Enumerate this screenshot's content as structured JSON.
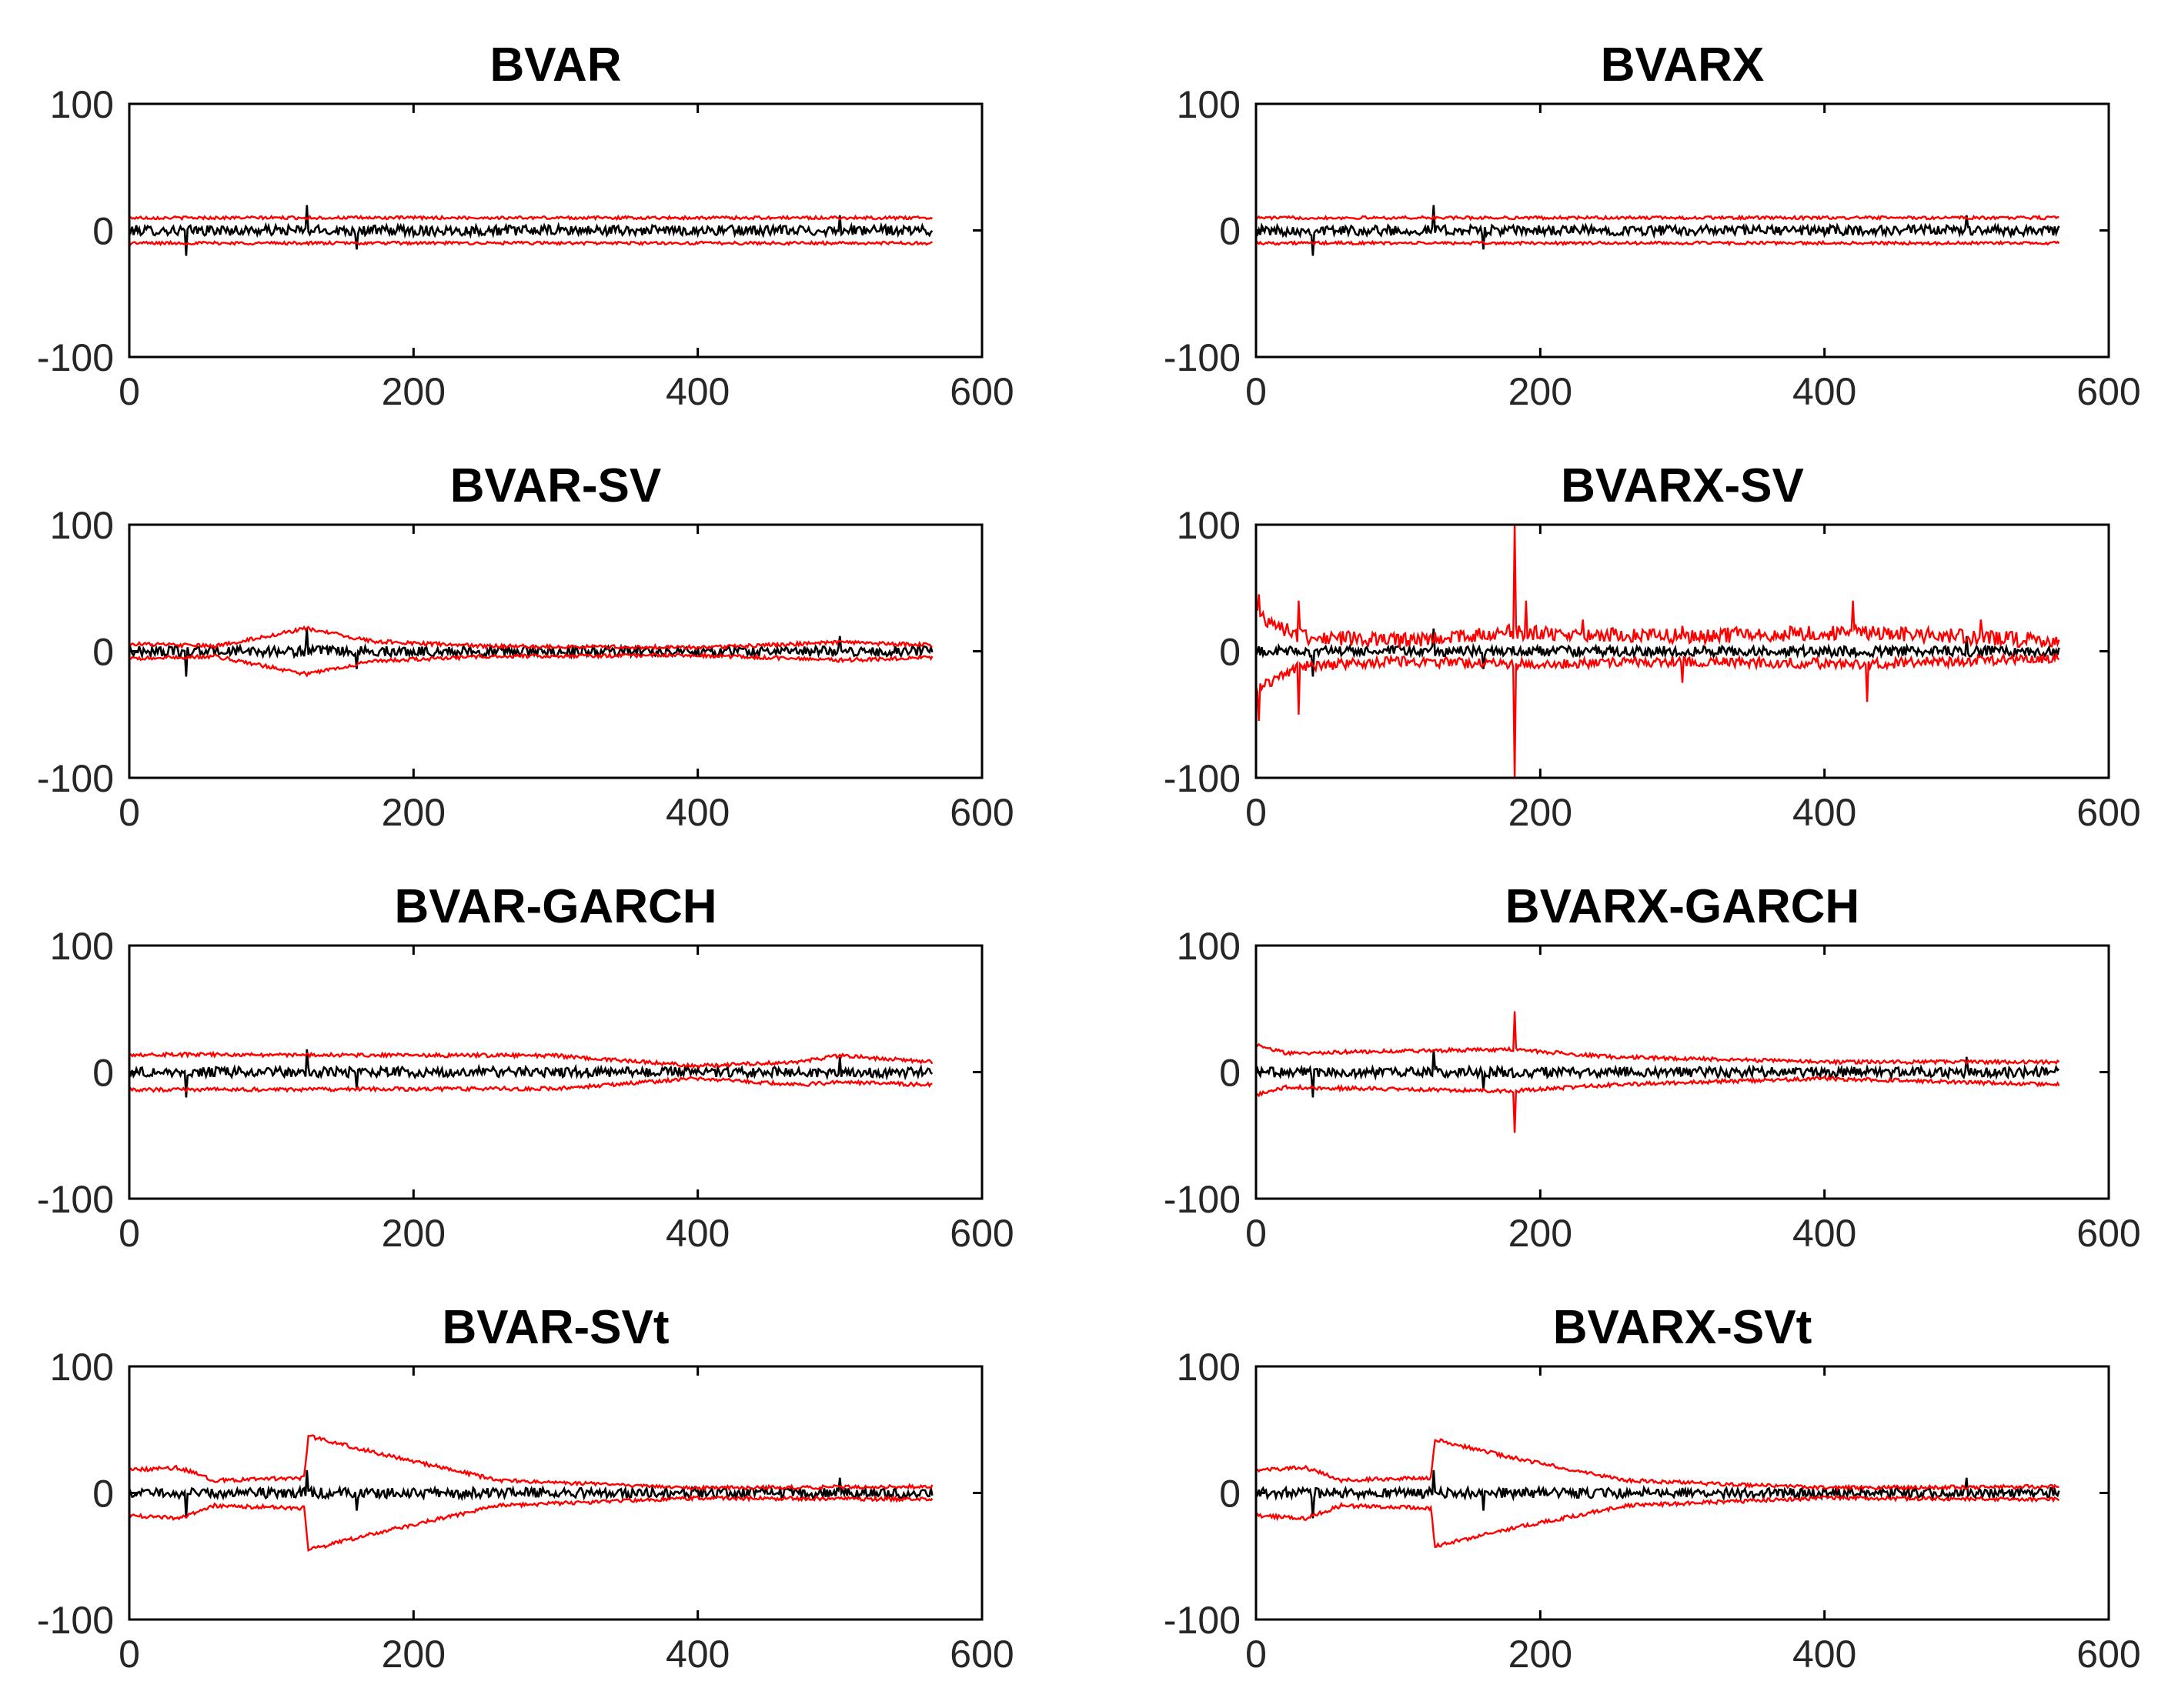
{
  "figure": {
    "colors": {
      "actual": "#000000",
      "bands": "#ff0000",
      "axes": "#000000",
      "tick_text": "#262626"
    }
  },
  "chart_data": [
    {
      "type": "line",
      "title": "BVAR",
      "xlim": [
        0,
        600
      ],
      "ylim": [
        -100,
        100
      ],
      "xticks": [
        "0",
        "200",
        "400",
        "600"
      ],
      "yticks": [
        "100",
        "0",
        "-100"
      ],
      "n_obs": 565,
      "series": [
        {
          "role": "actual",
          "color": "#000000",
          "mean": 0,
          "noise": 4,
          "spikes": [
            [
              40,
              -20
            ],
            [
              125,
              20
            ],
            [
              160,
              -15
            ],
            [
              500,
              12
            ]
          ]
        },
        {
          "role": "upper-band",
          "color": "#ff0000",
          "profile": [
            [
              0,
              10
            ],
            [
              565,
              10
            ]
          ],
          "noise": 1.2
        },
        {
          "role": "lower-band",
          "color": "#ff0000",
          "profile": [
            [
              0,
              -10
            ],
            [
              565,
              -10
            ]
          ],
          "noise": 1.2
        }
      ]
    },
    {
      "type": "line",
      "title": "BVARX",
      "xlim": [
        0,
        600
      ],
      "ylim": [
        -100,
        100
      ],
      "xticks": [
        "0",
        "200",
        "400",
        "600"
      ],
      "yticks": [
        "100",
        "0",
        "-100"
      ],
      "n_obs": 565,
      "series": [
        {
          "role": "actual",
          "color": "#000000",
          "mean": 0,
          "noise": 4,
          "spikes": [
            [
              40,
              -20
            ],
            [
              125,
              20
            ],
            [
              160,
              -15
            ],
            [
              500,
              12
            ]
          ]
        },
        {
          "role": "upper-band",
          "color": "#ff0000",
          "profile": [
            [
              0,
              10
            ],
            [
              565,
              10
            ]
          ],
          "noise": 1.2
        },
        {
          "role": "lower-band",
          "color": "#ff0000",
          "profile": [
            [
              0,
              -10
            ],
            [
              565,
              -10
            ]
          ],
          "noise": 1.2
        }
      ]
    },
    {
      "type": "line",
      "title": "BVAR-SV",
      "xlim": [
        0,
        600
      ],
      "ylim": [
        -100,
        100
      ],
      "xticks": [
        "0",
        "200",
        "400",
        "600"
      ],
      "yticks": [
        "100",
        "0",
        "-100"
      ],
      "n_obs": 565,
      "series": [
        {
          "role": "actual",
          "color": "#000000",
          "mean": 0,
          "noise": 4,
          "spikes": [
            [
              40,
              -20
            ],
            [
              125,
              18
            ],
            [
              160,
              -14
            ],
            [
              500,
              12
            ]
          ]
        },
        {
          "role": "upper-band",
          "color": "#ff0000",
          "profile": [
            [
              0,
              6
            ],
            [
              60,
              4
            ],
            [
              125,
              18
            ],
            [
              170,
              8
            ],
            [
              250,
              4
            ],
            [
              400,
              3
            ],
            [
              500,
              7
            ],
            [
              565,
              5
            ]
          ],
          "noise": 1.5
        },
        {
          "role": "lower-band",
          "color": "#ff0000",
          "profile": [
            [
              0,
              -6
            ],
            [
              60,
              -4
            ],
            [
              125,
              -18
            ],
            [
              170,
              -8
            ],
            [
              250,
              -4
            ],
            [
              400,
              -3
            ],
            [
              500,
              -7
            ],
            [
              565,
              -5
            ]
          ],
          "noise": 1.5
        }
      ]
    },
    {
      "type": "line",
      "title": "BVARX-SV",
      "xlim": [
        0,
        600
      ],
      "ylim": [
        -100,
        100
      ],
      "xticks": [
        "0",
        "200",
        "400",
        "600"
      ],
      "yticks": [
        "100",
        "0",
        "-100"
      ],
      "n_obs": 565,
      "series": [
        {
          "role": "actual",
          "color": "#000000",
          "mean": 0,
          "noise": 4,
          "spikes": [
            [
              40,
              -20
            ],
            [
              125,
              18
            ],
            [
              160,
              -14
            ],
            [
              500,
              12
            ]
          ]
        },
        {
          "role": "upper-band",
          "color": "#ff0000",
          "profile": [
            [
              0,
              30
            ],
            [
              30,
              12
            ],
            [
              100,
              8
            ],
            [
              180,
              15
            ],
            [
              300,
              12
            ],
            [
              430,
              15
            ],
            [
              565,
              8
            ]
          ],
          "noise": 6,
          "spikes": [
            [
              2,
              45
            ],
            [
              30,
              40
            ],
            [
              182,
              100
            ],
            [
              190,
              40
            ],
            [
              230,
              25
            ],
            [
              300,
              20
            ],
            [
              420,
              40
            ],
            [
              510,
              25
            ]
          ]
        },
        {
          "role": "lower-band",
          "color": "#ff0000",
          "profile": [
            [
              0,
              -30
            ],
            [
              30,
              -12
            ],
            [
              100,
              -8
            ],
            [
              180,
              -10
            ],
            [
              300,
              -8
            ],
            [
              430,
              -10
            ],
            [
              565,
              -5
            ]
          ],
          "noise": 4,
          "spikes": [
            [
              2,
              -55
            ],
            [
              30,
              -50
            ],
            [
              182,
              -100
            ],
            [
              300,
              -25
            ],
            [
              430,
              -40
            ]
          ]
        }
      ]
    },
    {
      "type": "line",
      "title": "BVAR-GARCH",
      "xlim": [
        0,
        600
      ],
      "ylim": [
        -100,
        100
      ],
      "xticks": [
        "0",
        "200",
        "400",
        "600"
      ],
      "yticks": [
        "100",
        "0",
        "-100"
      ],
      "n_obs": 565,
      "series": [
        {
          "role": "actual",
          "color": "#000000",
          "mean": 0,
          "noise": 4,
          "spikes": [
            [
              40,
              -20
            ],
            [
              125,
              18
            ],
            [
              160,
              -14
            ],
            [
              500,
              12
            ]
          ]
        },
        {
          "role": "upper-band",
          "color": "#ff0000",
          "profile": [
            [
              0,
              14
            ],
            [
              300,
              13
            ],
            [
              400,
              5
            ],
            [
              470,
              8
            ],
            [
              500,
              13
            ],
            [
              565,
              8
            ]
          ],
          "noise": 1.5
        },
        {
          "role": "lower-band",
          "color": "#ff0000",
          "profile": [
            [
              0,
              -14
            ],
            [
              300,
              -13
            ],
            [
              400,
              -5
            ],
            [
              470,
              -10
            ],
            [
              500,
              -8
            ],
            [
              565,
              -10
            ]
          ],
          "noise": 1.5
        }
      ]
    },
    {
      "type": "line",
      "title": "BVARX-GARCH",
      "xlim": [
        0,
        600
      ],
      "ylim": [
        -100,
        100
      ],
      "xticks": [
        "0",
        "200",
        "400",
        "600"
      ],
      "yticks": [
        "100",
        "0",
        "-100"
      ],
      "n_obs": 565,
      "series": [
        {
          "role": "actual",
          "color": "#000000",
          "mean": 0,
          "noise": 4,
          "spikes": [
            [
              40,
              -20
            ],
            [
              125,
              18
            ],
            [
              160,
              -14
            ],
            [
              500,
              12
            ]
          ]
        },
        {
          "role": "upper-band",
          "color": "#ff0000",
          "profile": [
            [
              0,
              22
            ],
            [
              20,
              15
            ],
            [
              180,
              18
            ],
            [
              250,
              12
            ],
            [
              400,
              8
            ],
            [
              565,
              8
            ]
          ],
          "noise": 1.5,
          "spikes": [
            [
              182,
              48
            ]
          ]
        },
        {
          "role": "lower-band",
          "color": "#ff0000",
          "profile": [
            [
              0,
              -18
            ],
            [
              20,
              -12
            ],
            [
              180,
              -15
            ],
            [
              250,
              -10
            ],
            [
              400,
              -5
            ],
            [
              565,
              -10
            ]
          ],
          "noise": 1.5,
          "spikes": [
            [
              182,
              -48
            ]
          ]
        }
      ]
    },
    {
      "type": "line",
      "title": "BVAR-SVt",
      "xlim": [
        0,
        600
      ],
      "ylim": [
        -100,
        100
      ],
      "xticks": [
        "0",
        "200",
        "400",
        "600"
      ],
      "yticks": [
        "100",
        "0",
        "-100"
      ],
      "n_obs": 565,
      "series": [
        {
          "role": "actual",
          "color": "#000000",
          "mean": 0,
          "noise": 4,
          "spikes": [
            [
              40,
              -20
            ],
            [
              125,
              18
            ],
            [
              160,
              -14
            ],
            [
              500,
              12
            ]
          ]
        },
        {
          "role": "upper-band",
          "color": "#ff0000",
          "profile": [
            [
              0,
              18
            ],
            [
              35,
              20
            ],
            [
              60,
              10
            ],
            [
              123,
              12
            ],
            [
              126,
              45
            ],
            [
              180,
              30
            ],
            [
              260,
              10
            ],
            [
              400,
              4
            ],
            [
              565,
              5
            ]
          ],
          "noise": 1.5
        },
        {
          "role": "lower-band",
          "color": "#ff0000",
          "profile": [
            [
              0,
              -18
            ],
            [
              35,
              -20
            ],
            [
              60,
              -10
            ],
            [
              123,
              -12
            ],
            [
              126,
              -45
            ],
            [
              180,
              -30
            ],
            [
              260,
              -10
            ],
            [
              400,
              -4
            ],
            [
              565,
              -5
            ]
          ],
          "noise": 1.5
        }
      ]
    },
    {
      "type": "line",
      "title": "BVARX-SVt",
      "xlim": [
        0,
        600
      ],
      "ylim": [
        -100,
        100
      ],
      "xticks": [
        "0",
        "200",
        "400",
        "600"
      ],
      "yticks": [
        "100",
        "0",
        "-100"
      ],
      "n_obs": 565,
      "series": [
        {
          "role": "actual",
          "color": "#000000",
          "mean": 0,
          "noise": 4,
          "spikes": [
            [
              40,
              -20
            ],
            [
              125,
              18
            ],
            [
              160,
              -14
            ],
            [
              500,
              12
            ]
          ]
        },
        {
          "role": "upper-band",
          "color": "#ff0000",
          "profile": [
            [
              0,
              18
            ],
            [
              35,
              20
            ],
            [
              60,
              10
            ],
            [
              123,
              12
            ],
            [
              126,
              42
            ],
            [
              180,
              28
            ],
            [
              260,
              10
            ],
            [
              400,
              4
            ],
            [
              565,
              5
            ]
          ],
          "noise": 1.5
        },
        {
          "role": "lower-band",
          "color": "#ff0000",
          "profile": [
            [
              0,
              -18
            ],
            [
              35,
              -20
            ],
            [
              60,
              -10
            ],
            [
              123,
              -12
            ],
            [
              126,
              -42
            ],
            [
              180,
              -28
            ],
            [
              260,
              -10
            ],
            [
              400,
              -4
            ],
            [
              565,
              -5
            ]
          ],
          "noise": 1.5
        }
      ]
    }
  ]
}
